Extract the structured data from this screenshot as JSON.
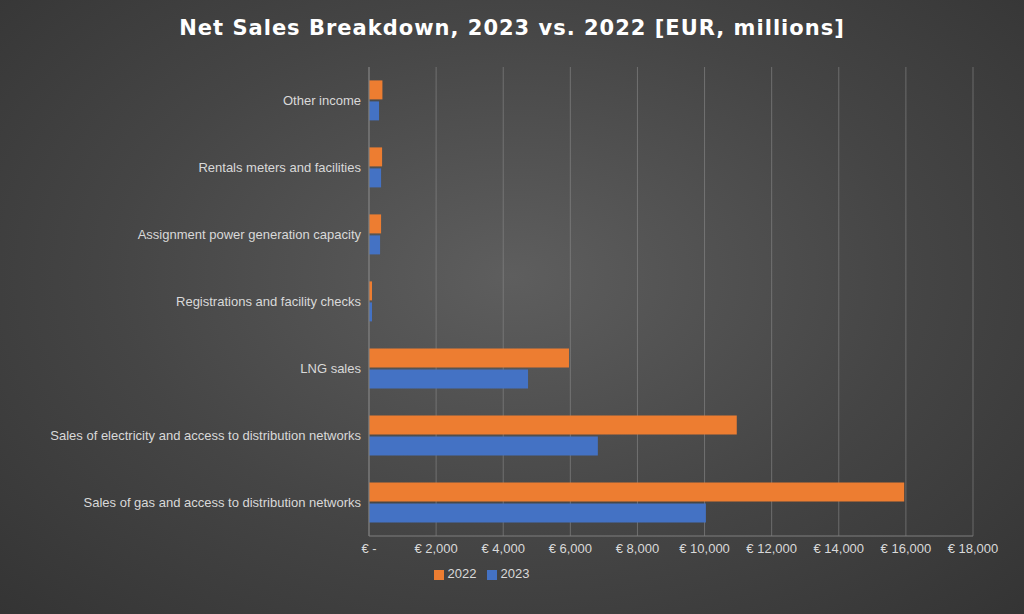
{
  "chart_data": {
    "type": "bar",
    "title": "Net Sales Breakdown, 2023 vs. 2022 [EUR, millions]",
    "orientation": "horizontal",
    "categories": [
      "Other income",
      "Rentals meters and facilities",
      "Assignment power generation capacity",
      "Registrations and facility checks",
      "LNG sales",
      "Sales of electricity and access to distribution networks",
      "Sales of gas and access to distribution networks"
    ],
    "series": [
      {
        "name": "2022",
        "color": "#ed7d31",
        "values": [
          400,
          390,
          360,
          90,
          5960,
          10960,
          15950
        ]
      },
      {
        "name": "2023",
        "color": "#4472c4",
        "values": [
          300,
          360,
          330,
          90,
          4740,
          6820,
          10040
        ]
      }
    ],
    "xlim": [
      0,
      18000
    ],
    "xticks": [
      {
        "value": 0,
        "label": "€ -"
      },
      {
        "value": 2000,
        "label": "€ 2,000"
      },
      {
        "value": 4000,
        "label": "€ 4,000"
      },
      {
        "value": 6000,
        "label": "€ 6,000"
      },
      {
        "value": 8000,
        "label": "€ 8,000"
      },
      {
        "value": 10000,
        "label": "€ 10,000"
      },
      {
        "value": 12000,
        "label": "€ 12,000"
      },
      {
        "value": 14000,
        "label": "€ 14,000"
      },
      {
        "value": 16000,
        "label": "€ 16,000"
      },
      {
        "value": 18000,
        "label": "€ 18,000"
      }
    ],
    "grid": true,
    "legend": "bottom"
  }
}
